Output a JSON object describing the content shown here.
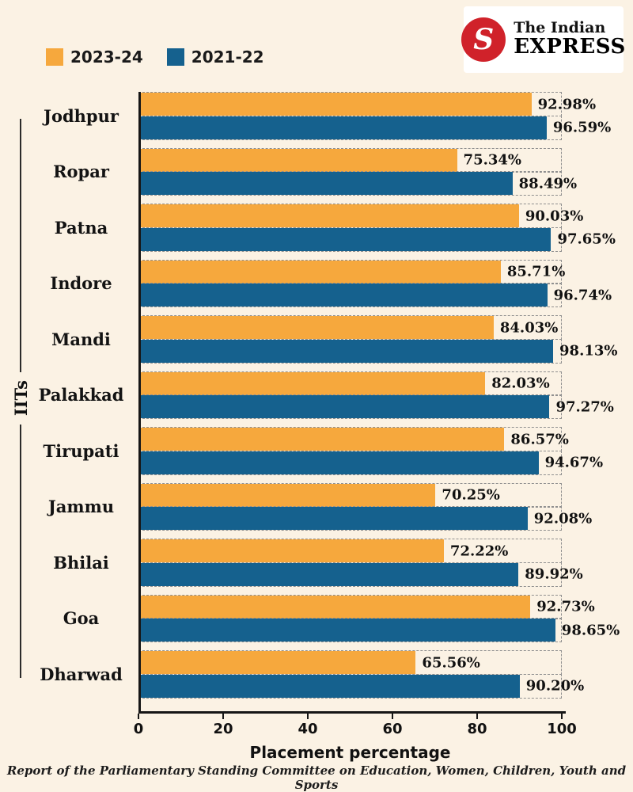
{
  "page": {
    "background": "#FBF2E4",
    "footer": "Report of the Parliamentary Standing Committee on Education, Women, Children, Youth and Sports"
  },
  "logo": {
    "mark_letter": "S",
    "line1": "The Indian",
    "line2": "EXPRESS",
    "mark_color": "#D0222A"
  },
  "legend": [
    {
      "label": "2023-24",
      "color": "#F6A83D"
    },
    {
      "label": "2021-22",
      "color": "#15618E"
    }
  ],
  "chart_data": {
    "type": "bar",
    "orientation": "horizontal",
    "title": "",
    "xlabel": "Placement percentage",
    "ylabel": "IITs",
    "xlim": [
      0,
      100
    ],
    "xticks": [
      0,
      20,
      40,
      60,
      80,
      100
    ],
    "grid": "dashed-tracks",
    "legend_position": "top-left",
    "categories": [
      "Jodhpur",
      "Ropar",
      "Patna",
      "Indore",
      "Mandi",
      "Palakkad",
      "Tirupati",
      "Jammu",
      "Bhilai",
      "Goa",
      "Dharwad"
    ],
    "series": [
      {
        "name": "2023-24",
        "color": "#F6A83D",
        "values": [
          92.98,
          75.34,
          90.03,
          85.71,
          84.03,
          82.03,
          86.57,
          70.25,
          72.22,
          92.73,
          65.56
        ]
      },
      {
        "name": "2021-22",
        "color": "#15618E",
        "values": [
          96.59,
          88.49,
          97.65,
          96.74,
          98.13,
          97.27,
          94.67,
          92.08,
          89.92,
          98.65,
          90.2
        ]
      }
    ],
    "value_suffix": "%"
  }
}
